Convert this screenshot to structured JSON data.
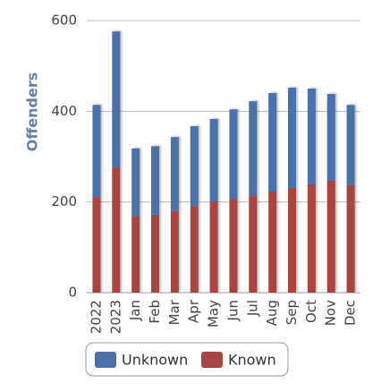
{
  "chart_data": {
    "type": "stacked_bar",
    "y_label": "Offenders",
    "categories": [
      "2022",
      "2023",
      "Jan",
      "Feb",
      "Mar",
      "Apr",
      "May",
      "Jun",
      "Jul",
      "Aug",
      "Sep",
      "Oct",
      "Nov",
      "Dec"
    ],
    "series": [
      {
        "name": "Unknown",
        "color": "#4a72a8",
        "values": [
          203,
          300,
          150,
          151,
          163,
          176,
          182,
          197,
          209,
          217,
          221,
          211,
          191,
          177
        ]
      },
      {
        "name": "Known",
        "color": "#a84442",
        "values": [
          211,
          276,
          168,
          172,
          180,
          191,
          201,
          207,
          213,
          223,
          231,
          239,
          247,
          237
        ]
      }
    ],
    "ylim": [
      0,
      600
    ],
    "yticks": [
      0,
      200,
      400,
      600
    ],
    "grid": true
  }
}
